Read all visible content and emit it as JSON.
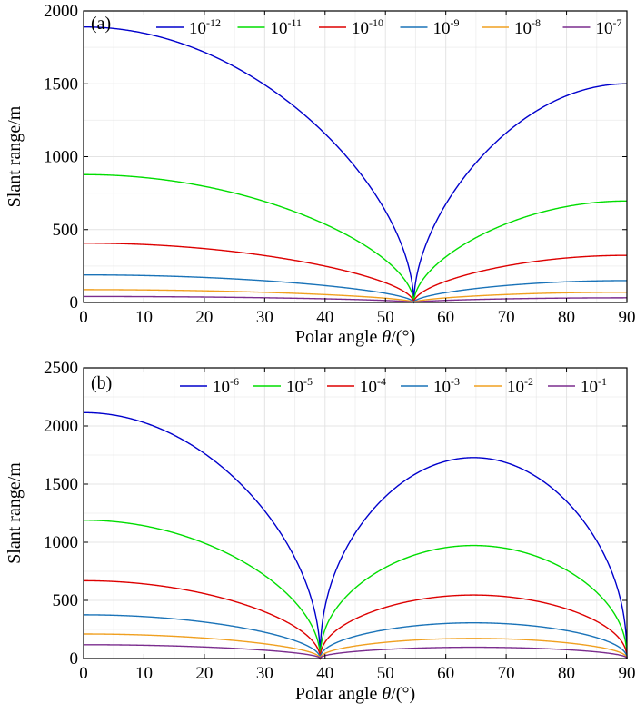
{
  "chart_data": [
    {
      "type": "line",
      "panel_label": "(a)",
      "xlabel_prefix": "Polar angle ",
      "xlabel_var": "θ",
      "xlabel_suffix": "/(°)",
      "ylabel": "Slant range/m",
      "xlim": [
        0,
        90
      ],
      "ylim": [
        0,
        2000
      ],
      "xticks": [
        0,
        10,
        20,
        30,
        40,
        50,
        60,
        70,
        80,
        90
      ],
      "yticks": [
        0,
        500,
        1000,
        1500,
        2000
      ],
      "grid": true,
      "legend_position": "top",
      "null_angle": 54.7,
      "series": [
        {
          "name_base": "10",
          "name_exp": "-12",
          "color": "#0000cc",
          "start": 1890,
          "end": 1500
        },
        {
          "name_base": "10",
          "name_exp": "-11",
          "color": "#00dd00",
          "start": 877,
          "end": 696
        },
        {
          "name_base": "10",
          "name_exp": "-10",
          "color": "#dd0000",
          "start": 407,
          "end": 323
        },
        {
          "name_base": "10",
          "name_exp": "-9",
          "color": "#1a73b8",
          "start": 189,
          "end": 150
        },
        {
          "name_base": "10",
          "name_exp": "-8",
          "color": "#f0a020",
          "start": 88,
          "end": 70
        },
        {
          "name_base": "10",
          "name_exp": "-7",
          "color": "#7b2d8e",
          "start": 41,
          "end": 32
        }
      ]
    },
    {
      "type": "line",
      "panel_label": "(b)",
      "xlabel_prefix": "Polar angle ",
      "xlabel_var": "θ",
      "xlabel_suffix": "/(°)",
      "ylabel": "Slant range/m",
      "xlim": [
        0,
        90
      ],
      "ylim": [
        0,
        2500
      ],
      "xticks": [
        0,
        10,
        20,
        30,
        40,
        50,
        60,
        70,
        80,
        90
      ],
      "yticks": [
        0,
        500,
        1000,
        1500,
        2000,
        2500
      ],
      "grid": true,
      "legend_position": "top",
      "null_angles": [
        39.2,
        90
      ],
      "series": [
        {
          "name_base": "10",
          "name_exp": "-6",
          "color": "#0000cc",
          "start": 2115,
          "peak": 1728
        },
        {
          "name_base": "10",
          "name_exp": "-5",
          "color": "#00dd00",
          "start": 1190,
          "peak": 972
        },
        {
          "name_base": "10",
          "name_exp": "-4",
          "color": "#dd0000",
          "start": 669,
          "peak": 546
        },
        {
          "name_base": "10",
          "name_exp": "-3",
          "color": "#1a73b8",
          "start": 376,
          "peak": 307
        },
        {
          "name_base": "10",
          "name_exp": "-2",
          "color": "#f0a020",
          "start": 211,
          "peak": 173
        },
        {
          "name_base": "10",
          "name_exp": "-1",
          "color": "#7b2d8e",
          "start": 119,
          "peak": 97
        }
      ]
    }
  ]
}
